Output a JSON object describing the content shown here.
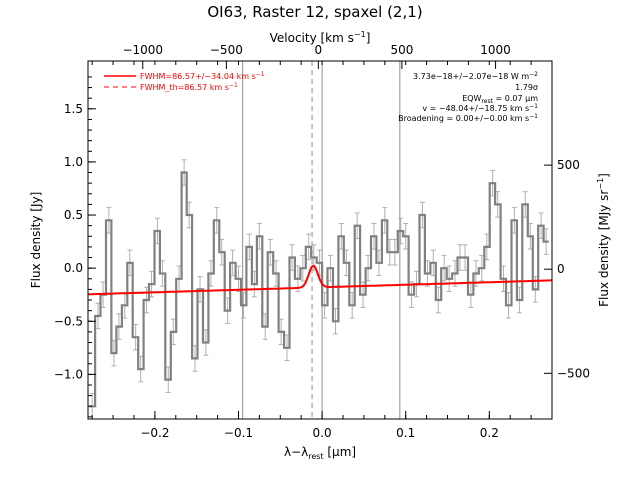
{
  "chart_data": {
    "type": "line",
    "title": "OI63, Raster 12, spaxel (2,1)",
    "xlabel_main": "λ−λ",
    "xlabel_sub": "rest",
    "xlabel_unit": "[μm]",
    "ylabel": "Flux density [Jy]",
    "top_axis_label": "Velocity [km s",
    "top_axis_label_sup": "−1",
    "top_axis_label_end": "]",
    "right_axis_label": "Flux density [MJy sr",
    "right_axis_label_sup": "−1",
    "right_axis_label_end": "]",
    "xlim": [
      -0.28,
      0.275
    ],
    "ylim": [
      -1.42,
      1.95
    ],
    "x_ticks": [
      -0.2,
      -0.1,
      0.0,
      0.1,
      0.2
    ],
    "x_tick_labels": [
      "−0.2",
      "−0.1",
      "0.0",
      "0.1",
      "0.2"
    ],
    "y_ticks": [
      -1.0,
      -0.5,
      0.0,
      0.5,
      1.0,
      1.5
    ],
    "y_tick_labels": [
      "−1.0",
      "−0.5",
      "0.0",
      "0.5",
      "1.0",
      "1.5"
    ],
    "top_ticks": [
      -1000,
      -500,
      0,
      500,
      1000
    ],
    "top_tick_labels": [
      "−1000",
      "−500",
      "0",
      "500",
      "1000"
    ],
    "top_tick_x": [
      -0.2145,
      -0.1145,
      -0.0045,
      0.0955,
      0.2075
    ],
    "right_ticks": [
      500,
      0,
      -500
    ],
    "right_tick_labels": [
      "500",
      "0",
      "−500"
    ],
    "right_tick_y": [
      0.97,
      -0.01,
      -0.99
    ],
    "vlines_solid": [
      -0.095,
      0.0,
      0.093
    ],
    "vline_dashed": -0.012,
    "legend": {
      "position": "top-left",
      "entries": [
        {
          "label": "FWHM=86.57+/−34.04 km s",
          "sup": "−1",
          "style": "solid",
          "color": "#ff0000"
        },
        {
          "label": "FWHM_th=86.57 km s",
          "sup": "−1",
          "style": "dashed",
          "color": "#ff0000"
        }
      ]
    },
    "annotations": [
      {
        "text": "3.73e−18+/−2.07e−18 W m",
        "sup": "−2"
      },
      {
        "text": "1.79σ"
      },
      {
        "text": "EQW",
        "sub": "rest",
        "tail": " = 0.07 μm"
      },
      {
        "text": "v = −48.04+/−18.75 km s",
        "sup": "−1"
      },
      {
        "text": "Broadening = 0.00+/−0.00 km s",
        "sup": "−1"
      }
    ],
    "spectrum": {
      "name": "",
      "color": "#808080",
      "x": [
        -0.275,
        -0.268,
        -0.262,
        -0.255,
        -0.249,
        -0.243,
        -0.236,
        -0.23,
        -0.223,
        -0.217,
        -0.21,
        -0.204,
        -0.197,
        -0.191,
        -0.184,
        -0.178,
        -0.171,
        -0.165,
        -0.159,
        -0.152,
        -0.146,
        -0.139,
        -0.133,
        -0.126,
        -0.12,
        -0.113,
        -0.107,
        -0.1,
        -0.094,
        -0.087,
        -0.081,
        -0.075,
        -0.068,
        -0.062,
        -0.055,
        -0.049,
        -0.042,
        -0.036,
        -0.029,
        -0.023,
        -0.016,
        -0.01,
        -0.003,
        0.003,
        0.01,
        0.016,
        0.023,
        0.029,
        0.036,
        0.042,
        0.049,
        0.055,
        0.062,
        0.068,
        0.075,
        0.081,
        0.087,
        0.094,
        0.1,
        0.107,
        0.113,
        0.12,
        0.126,
        0.133,
        0.139,
        0.146,
        0.152,
        0.159,
        0.165,
        0.171,
        0.178,
        0.184,
        0.191,
        0.197,
        0.204,
        0.21,
        0.217,
        0.223,
        0.23,
        0.236,
        0.243,
        0.249,
        0.255,
        0.262,
        0.268
      ],
      "y": [
        -1.3,
        -0.45,
        -0.25,
        0.45,
        -0.8,
        -0.55,
        -0.35,
        0.05,
        -0.65,
        -0.95,
        -0.3,
        -0.15,
        0.35,
        -0.05,
        -1.05,
        -0.6,
        -0.1,
        0.9,
        0.5,
        -0.85,
        -0.2,
        -0.7,
        -0.05,
        0.45,
        0.15,
        -0.4,
        0.05,
        -0.1,
        -0.35,
        0.2,
        -0.15,
        0.3,
        -0.55,
        0.15,
        -0.05,
        -0.6,
        -0.75,
        0.1,
        -0.1,
        0.0,
        0.2,
        0.1,
        0.05,
        -0.35,
        0.0,
        -0.5,
        0.3,
        0.05,
        -0.35,
        0.4,
        -0.25,
        0.0,
        0.3,
        0.05,
        0.45,
        0.15,
        0.15,
        0.35,
        0.3,
        -0.25,
        -0.15,
        0.5,
        -0.05,
        0.05,
        -0.3,
        0.0,
        -0.1,
        -0.05,
        0.1,
        0.1,
        -0.25,
        -0.05,
        0.0,
        0.2,
        0.8,
        0.6,
        -0.1,
        -0.35,
        0.45,
        -0.3,
        0.6,
        0.3,
        -0.2,
        0.4,
        0.25
      ],
      "err": 0.12
    },
    "fit": {
      "name": "",
      "color": "#ff0000",
      "baseline_slope": 0.79,
      "baseline_intercept": -0.18,
      "peak_center": -0.0105,
      "peak_amplitude": 0.205,
      "peak_sigma": 0.0055
    }
  }
}
